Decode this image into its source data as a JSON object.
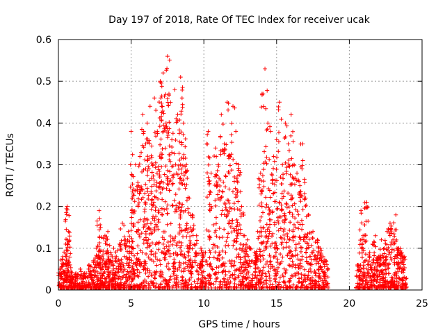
{
  "chart_data": {
    "type": "scatter",
    "title": "Day 197 of 2018, Rate Of TEC Index for receiver ucak",
    "xlabel": "GPS time / hours",
    "ylabel": "ROTI / TECUs",
    "xlim": [
      0,
      25
    ],
    "ylim": [
      0,
      0.6
    ],
    "xticks": [
      0,
      5,
      10,
      15,
      20,
      25
    ],
    "xtick_labels": [
      "0",
      "5",
      "10",
      "15",
      "20",
      "25"
    ],
    "yticks": [
      0,
      0.1,
      0.2,
      0.3,
      0.4,
      0.5,
      0.6
    ],
    "ytick_labels": [
      "0",
      "0.1",
      "0.2",
      "0.3",
      "0.4",
      "0.5",
      "0.6"
    ],
    "grid": true,
    "marker": "+",
    "color": "#ff0000",
    "series": [
      {
        "name": "ROTI",
        "x": [
          0.1,
          0.3,
          0.5,
          0.6,
          0.7,
          0.8,
          1.0,
          1.2,
          1.5,
          1.8,
          2.1,
          2.4,
          2.6,
          2.8,
          2.9,
          3.0,
          3.2,
          3.4,
          3.6,
          3.8,
          4.0,
          4.2,
          4.4,
          4.6,
          4.8,
          5.0,
          5.1,
          5.3,
          5.5,
          5.6,
          5.8,
          6.0,
          6.1,
          6.3,
          6.5,
          6.6,
          6.8,
          7.0,
          7.1,
          7.2,
          7.4,
          7.5,
          7.6,
          7.8,
          8.0,
          8.2,
          8.4,
          8.5,
          8.6,
          8.8,
          9.0,
          9.2,
          9.5,
          9.8,
          10.0,
          10.3,
          10.5,
          10.8,
          11.0,
          11.2,
          11.4,
          11.6,
          11.8,
          12.0,
          12.2,
          12.4,
          12.6,
          12.8,
          13.0,
          13.2,
          13.5,
          13.7,
          13.9,
          14.0,
          14.2,
          14.4,
          14.6,
          14.8,
          15.0,
          15.2,
          15.4,
          15.6,
          15.8,
          16.0,
          16.2,
          16.4,
          16.6,
          16.8,
          17.0,
          17.2,
          17.5,
          17.8,
          18.0,
          18.2,
          18.4,
          20.6,
          20.8,
          21.0,
          21.2,
          21.4,
          21.6,
          21.8,
          22.0,
          22.2,
          22.4,
          22.6,
          22.8,
          23.0,
          23.2,
          23.4,
          23.6,
          23.8
        ],
        "y": [
          0.05,
          0.08,
          0.11,
          0.2,
          0.14,
          0.06,
          0.03,
          0.04,
          0.05,
          0.04,
          0.06,
          0.07,
          0.1,
          0.19,
          0.15,
          0.08,
          0.13,
          0.14,
          0.09,
          0.1,
          0.08,
          0.11,
          0.16,
          0.12,
          0.14,
          0.38,
          0.22,
          0.3,
          0.25,
          0.32,
          0.42,
          0.35,
          0.4,
          0.44,
          0.3,
          0.46,
          0.38,
          0.5,
          0.44,
          0.52,
          0.4,
          0.56,
          0.47,
          0.36,
          0.48,
          0.42,
          0.51,
          0.46,
          0.4,
          0.3,
          0.22,
          0.18,
          0.13,
          0.1,
          0.09,
          0.38,
          0.28,
          0.34,
          0.3,
          0.42,
          0.35,
          0.45,
          0.32,
          0.44,
          0.38,
          0.3,
          0.2,
          0.13,
          0.12,
          0.1,
          0.09,
          0.14,
          0.28,
          0.47,
          0.53,
          0.4,
          0.38,
          0.32,
          0.36,
          0.45,
          0.3,
          0.4,
          0.35,
          0.42,
          0.3,
          0.28,
          0.25,
          0.35,
          0.22,
          0.18,
          0.14,
          0.12,
          0.1,
          0.08,
          0.07,
          0.06,
          0.19,
          0.12,
          0.21,
          0.09,
          0.11,
          0.13,
          0.08,
          0.12,
          0.1,
          0.14,
          0.16,
          0.12,
          0.18,
          0.1,
          0.09,
          0.08
        ]
      }
    ]
  }
}
